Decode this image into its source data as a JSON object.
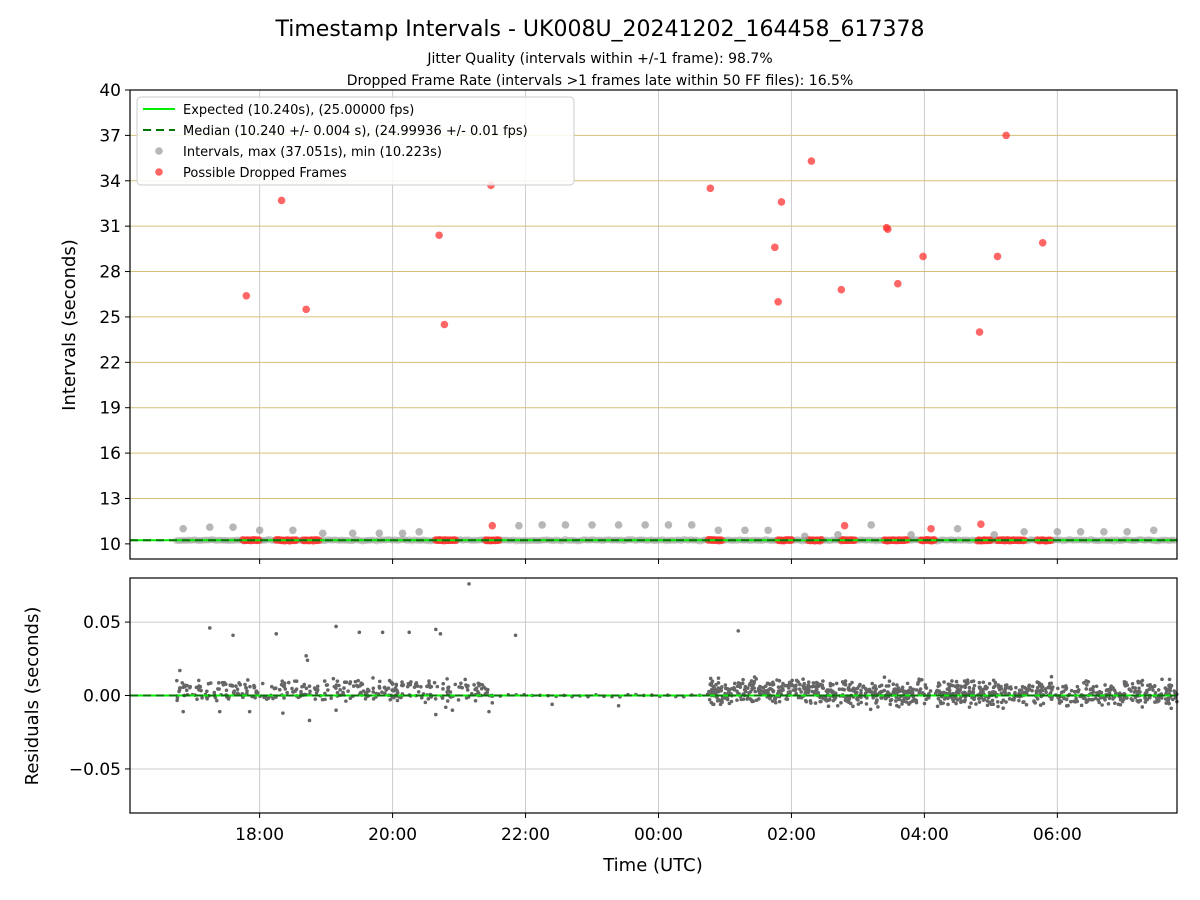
{
  "title": "Timestamp Intervals - UK008U_20241202_164458_617378",
  "subtitle_1": "Jitter Quality (intervals within +/-1 frame): 98.7%",
  "subtitle_2": "Dropped Frame Rate (intervals >1 frames late within 50 FF files): 16.5%",
  "colors": {
    "expected": "#00ee00",
    "median": "#007700",
    "intervals": "#999999",
    "dropped": "#ff3333",
    "grid_h": "#d4c07a",
    "grid_v": "#cccccc",
    "residual_points": "#666666"
  },
  "chart_data": [
    {
      "type": "scatter",
      "xlabel": "",
      "ylabel": "Intervals (seconds)",
      "ylim": [
        9,
        40
      ],
      "yticks": [
        10,
        13,
        16,
        19,
        22,
        25,
        28,
        31,
        34,
        37,
        40
      ],
      "xlim_hours": [
        16.05,
        31.8
      ],
      "grid": "on",
      "legend_placement": "top-left",
      "legend": [
        "Expected (10.240s), (25.00000 fps)",
        "Median (10.240 +/- 0.004 s), (24.99936 +/- 0.01 fps)",
        "Intervals, max (37.051s), min (10.223s)",
        "Possible Dropped Frames"
      ],
      "expected_value": 10.24,
      "median_value": 10.24,
      "interval_outliers": [
        [
          16.85,
          11.0
        ],
        [
          17.25,
          11.1
        ],
        [
          17.6,
          11.1
        ],
        [
          18.0,
          10.9
        ],
        [
          18.5,
          10.9
        ],
        [
          18.95,
          10.7
        ],
        [
          19.4,
          10.7
        ],
        [
          19.8,
          10.7
        ],
        [
          20.15,
          10.7
        ],
        [
          20.4,
          10.8
        ],
        [
          21.9,
          11.2
        ],
        [
          22.25,
          11.25
        ],
        [
          22.6,
          11.25
        ],
        [
          23.0,
          11.25
        ],
        [
          23.4,
          11.25
        ],
        [
          23.8,
          11.25
        ],
        [
          24.15,
          11.25
        ],
        [
          24.5,
          11.25
        ],
        [
          24.9,
          10.9
        ],
        [
          25.3,
          10.9
        ],
        [
          25.65,
          10.9
        ],
        [
          26.2,
          10.5
        ],
        [
          26.7,
          10.6
        ],
        [
          27.2,
          11.25
        ],
        [
          27.8,
          10.6
        ],
        [
          28.5,
          11.0
        ],
        [
          29.05,
          10.6
        ],
        [
          29.5,
          10.8
        ],
        [
          30.0,
          10.8
        ],
        [
          30.35,
          10.8
        ],
        [
          30.7,
          10.8
        ],
        [
          31.05,
          10.8
        ],
        [
          31.45,
          10.9
        ]
      ],
      "dropped_frames": [
        [
          17.8,
          26.4
        ],
        [
          18.33,
          32.7
        ],
        [
          18.7,
          25.5
        ],
        [
          20.7,
          30.4
        ],
        [
          20.78,
          24.5
        ],
        [
          21.48,
          33.7
        ],
        [
          21.5,
          11.2
        ],
        [
          24.78,
          33.5
        ],
        [
          25.75,
          29.6
        ],
        [
          25.8,
          26.0
        ],
        [
          25.85,
          32.6
        ],
        [
          26.3,
          35.3
        ],
        [
          26.75,
          26.8
        ],
        [
          26.8,
          11.2
        ],
        [
          27.43,
          30.9
        ],
        [
          27.45,
          30.8
        ],
        [
          27.6,
          27.2
        ],
        [
          27.98,
          29.0
        ],
        [
          28.1,
          11.0
        ],
        [
          28.83,
          24.0
        ],
        [
          28.85,
          11.3
        ],
        [
          29.1,
          29.0
        ],
        [
          29.23,
          37.0
        ],
        [
          29.78,
          29.9
        ]
      ],
      "dropped_cluster_ranges": [
        [
          17.75,
          18.0
        ],
        [
          18.25,
          18.55
        ],
        [
          18.65,
          18.9
        ],
        [
          20.65,
          20.95
        ],
        [
          21.4,
          21.6
        ],
        [
          24.75,
          24.95
        ],
        [
          25.8,
          26.0
        ],
        [
          26.25,
          26.45
        ],
        [
          26.75,
          26.95
        ],
        [
          27.4,
          27.75
        ],
        [
          27.95,
          28.15
        ],
        [
          28.8,
          29.0
        ],
        [
          29.1,
          29.5
        ],
        [
          29.7,
          29.9
        ]
      ],
      "baseline_range": [
        16.75,
        31.8
      ]
    },
    {
      "type": "scatter",
      "xlabel": "Time (UTC)",
      "ylabel": "Residuals (seconds)",
      "ylim": [
        -0.08,
        0.08
      ],
      "yticks": [
        -0.05,
        0.0,
        0.05
      ],
      "ytick_labels": [
        "−0.05",
        "0.00",
        "0.05"
      ],
      "xticks_hours": [
        18,
        20,
        22,
        24,
        26,
        28,
        30
      ],
      "xtick_labels": [
        "18:00",
        "20:00",
        "22:00",
        "00:00",
        "02:00",
        "04:00",
        "06:00"
      ],
      "grid": "on",
      "residual_outliers": [
        [
          16.8,
          0.017
        ],
        [
          17.25,
          0.046
        ],
        [
          17.6,
          0.041
        ],
        [
          18.25,
          0.042
        ],
        [
          18.7,
          0.027
        ],
        [
          18.72,
          0.024
        ],
        [
          19.15,
          0.047
        ],
        [
          19.5,
          0.043
        ],
        [
          19.85,
          0.043
        ],
        [
          20.25,
          0.043
        ],
        [
          20.65,
          0.045
        ],
        [
          20.72,
          0.042
        ],
        [
          21.15,
          0.076
        ],
        [
          21.85,
          0.041
        ],
        [
          25.2,
          0.044
        ],
        [
          18.75,
          -0.017
        ],
        [
          18.35,
          -0.012
        ],
        [
          17.85,
          -0.011
        ],
        [
          17.4,
          -0.011
        ],
        [
          16.85,
          -0.011
        ],
        [
          19.15,
          -0.01
        ],
        [
          20.65,
          -0.013
        ],
        [
          21.45,
          -0.011
        ],
        [
          21.5,
          -0.005
        ],
        [
          22.4,
          -0.006
        ],
        [
          23.4,
          -0.007
        ],
        [
          20.8,
          -0.008
        ],
        [
          20.9,
          -0.01
        ]
      ],
      "residual_segments": [
        [
          16.75,
          21.5,
          0.007,
          0.004,
          320
        ],
        [
          24.75,
          26.5,
          0.006,
          0.006,
          260
        ],
        [
          26.5,
          31.8,
          0.003,
          0.008,
          700
        ]
      ],
      "expected_value": 0.0,
      "median_value": 0.0
    }
  ]
}
